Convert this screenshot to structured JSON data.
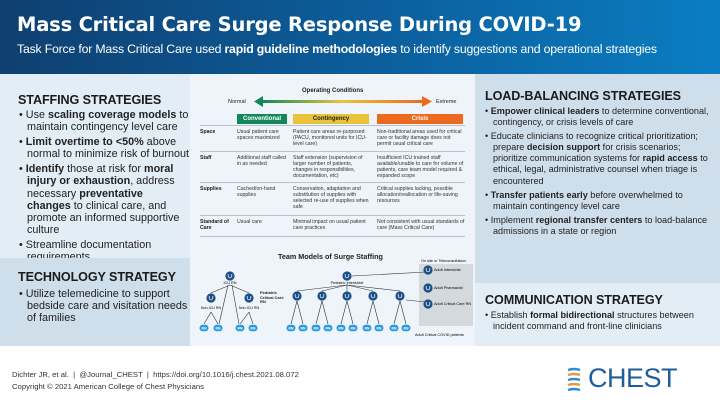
{
  "header": {
    "title": "Mass Critical Care Surge Response During COVID-19",
    "subtitle_pre": "Task Force for Mass Critical Care used ",
    "subtitle_bold": "rapid guideline methodologies",
    "subtitle_post": " to identify suggestions and operational strategies"
  },
  "staffing": {
    "heading": "STAFFING STRATEGIES",
    "items": [
      {
        "a": "Use ",
        "b": "scaling coverage models",
        "c": " to maintain contingency level care"
      },
      {
        "a": "",
        "b": "Limit overtime to <50%",
        "c": " above normal to minimize risk of burnout"
      },
      {
        "a": "",
        "b": "Identify",
        "c": " those at risk for ",
        "d": "moral injury or exhaustion",
        "e": ", address necessary ",
        "f": "preventative changes",
        "g": " to clinical care, and promote an informed supportive culture"
      },
      {
        "a": "Streamline documentation requirements"
      }
    ]
  },
  "technology": {
    "heading": "TECHNOLOGY STRATEGY",
    "items": [
      "Utilize telemedicine to support bedside care and visitation needs of families"
    ]
  },
  "operating": {
    "heading": "Operating Conditions",
    "normal": "Normal",
    "extreme": "Extreme",
    "columns": [
      "Conventional",
      "Contingency",
      "Crisis"
    ],
    "column_colors": [
      "#13875a",
      "#e9c43a",
      "#ec6a1f"
    ],
    "rows": [
      {
        "label": "Space",
        "cells": [
          "Usual patient care spaces maximized",
          "Patient care areas re-purposed (PACU, monitored units for ICU-level care)",
          "Non-traditional areas used for critical care or facility damage does not permit usual critical care"
        ]
      },
      {
        "label": "Staff",
        "cells": [
          "Additional staff called in as needed",
          "Staff extension (supervision of larger number of patients, changes in responsibilities, documentation, etc)",
          "Insufficient ICU trained staff available/unable to care for volume of patients, care team model required & expanded scope"
        ]
      },
      {
        "label": "Supplies",
        "cells": [
          "Cached/on-hand supplies",
          "Conservation, adaptation and substitution of supplies with selected re-use of supplies when safe",
          "Critical supplies lacking, possible allocation/reallocation or life-saving resources"
        ]
      },
      {
        "label": "Standard of Care",
        "cells": [
          "Usual care",
          "Minimal impact on usual patient care practices",
          "Not consistent with usual standards of care (Mass Critical Care)"
        ]
      }
    ]
  },
  "team": {
    "heading": "Team Models of Surge Staffing",
    "icu_rn": "ICU RN",
    "non_icu_rn": "Non-ICU RN",
    "rn": "RN",
    "ped_intensivist": "Pediatric Intensivist",
    "ped_cc_rn": "Pediatric Critical Care RN",
    "onsite": "On site or Teleconsultation",
    "adult_intensivist": "Adult Intensivist",
    "adult_pharmacist": "Adult Pharmacist",
    "adult_cc_rn": "Adult Critical Care RN",
    "adult_patients": "Adult Critical COVID patients"
  },
  "load": {
    "heading": "LOAD-BALANCING STRATEGIES",
    "items": [
      {
        "b": "Empower clinical leaders",
        "c": " to determine conventional, contingency, or crisis levels of care"
      },
      {
        "a": "Educate clinicians to recognize critical prioritization; prepare ",
        "b": "decision support",
        "c": " for crisis scenarios; prioritize communication systems for ",
        "d": "rapid access",
        "e": " to ethical, legal, administrative counsel when triage is encountered"
      },
      {
        "b": "Transfer patients early",
        "c": " before overwhelmed to maintain contingency level care"
      },
      {
        "a": "Implement ",
        "b": "regional transfer centers",
        "c": " to load-balance admissions in a state or region"
      }
    ]
  },
  "communication": {
    "heading": "COMMUNICATION STRATEGY",
    "items": [
      {
        "a": "Establish ",
        "b": "formal bidirectional",
        "c": " structures between incident command and front-line clinicians"
      }
    ]
  },
  "footer": {
    "citation": "Dichter JR, et al.  |  @Journal_CHEST  |  https://doi.org/10.1016/j.chest.2021.08.072",
    "copyright": "Copyright © 2021 American College of Chest Physicians",
    "logo": "CHEST"
  },
  "colors": {
    "header_dark": "#0f3f70",
    "header_light": "#0a7dc2",
    "node": "#1c4f86",
    "rn": "#2a9ae0"
  }
}
